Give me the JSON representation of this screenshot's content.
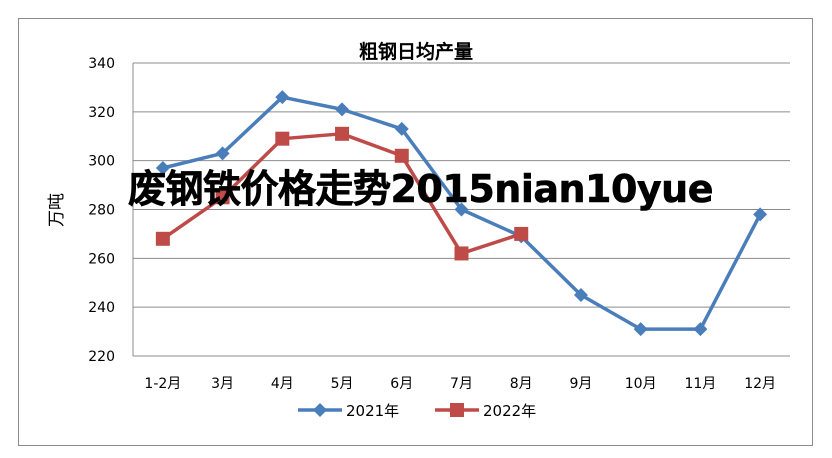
{
  "chart_data": {
    "type": "line",
    "title": "粗钢日均产量",
    "ylabel": "万吨",
    "xlabel": "",
    "ylim": [
      220,
      340
    ],
    "yticks": [
      220,
      240,
      260,
      280,
      300,
      320,
      340
    ],
    "grid": true,
    "legend_position": "bottom",
    "categories": [
      "1-2月",
      "3月",
      "4月",
      "5月",
      "6月",
      "7月",
      "8月",
      "9月",
      "10月",
      "11月",
      "12月"
    ],
    "series": [
      {
        "name": "2021年",
        "color": "#4a7ebb",
        "marker": "diamond",
        "values": [
          297,
          303,
          326,
          321,
          313,
          280,
          269,
          245,
          231,
          231,
          278
        ]
      },
      {
        "name": "2022年",
        "color": "#be4b48",
        "marker": "square",
        "values": [
          268,
          285,
          309,
          311,
          302,
          262,
          270,
          null,
          null,
          null,
          null
        ]
      }
    ]
  },
  "overlay_text": "废钢铁价格走势2015nian10yue"
}
